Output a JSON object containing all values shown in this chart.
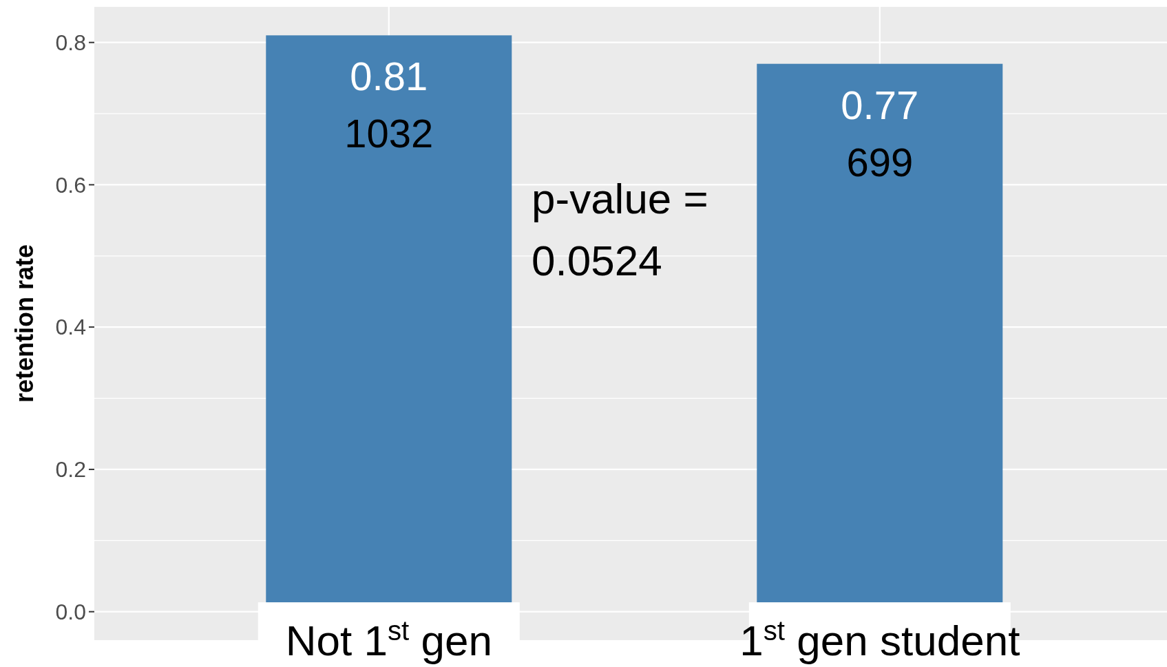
{
  "chart_data": {
    "type": "bar",
    "ylabel": "retention rate",
    "categories": [
      "Not 1$^{st}$ gen",
      "1$^{st}$ gen student"
    ],
    "values": [
      0.81,
      0.77
    ],
    "color": "#4682b4",
    "value_labels": [
      "0.81",
      "0.77"
    ],
    "annotations": [
      {
        "text": "1032",
        "x": "Not 1$^{st}$ gen",
        "y": 0.81
      },
      {
        "text": "699",
        "x": "1$^{st}$ gen student",
        "y": 0.77
      },
      "p-value = 0.0524"
    ],
    "ylim": [
      -0.04,
      0.85
    ],
    "yticks": [
      {
        "value": 0,
        "label": "0.0"
      },
      {
        "value": 0.2,
        "label": "0.2"
      },
      {
        "value": 0.4,
        "label": "0.4"
      },
      {
        "value": 0.6,
        "label": "0.6"
      },
      {
        "value": 0.8,
        "label": "0.8"
      }
    ],
    "grid": true
  }
}
